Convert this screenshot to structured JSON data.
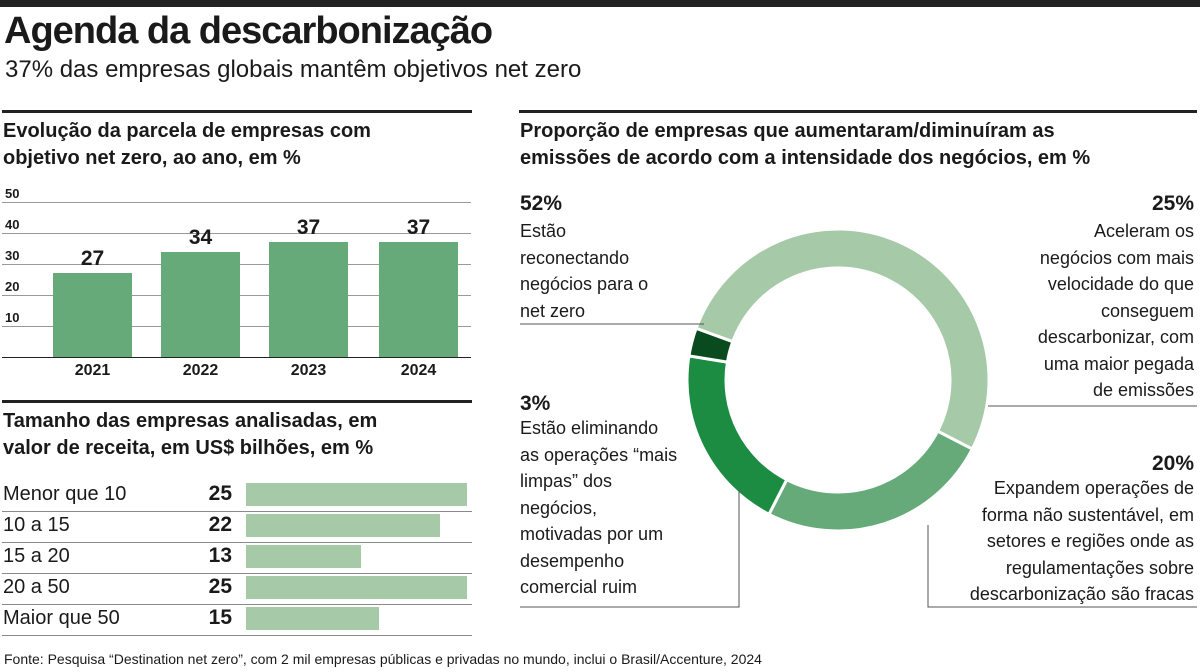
{
  "header": {
    "title": "Agenda da descarbonização",
    "subtitle": "37% das empresas globais mantêm objetivos net zero"
  },
  "left_top": {
    "title_line1": "Evolução da parcela de empresas com",
    "title_line2": "objetivo net zero, ao ano, em %"
  },
  "left_bottom": {
    "title_line1": "Tamanho das empresas analisadas, em",
    "title_line2": "valor de receita, em US$ bilhões, em %"
  },
  "right": {
    "title_line1": "Proporção de empresas que aumentaram/diminuíram as",
    "title_line2": "emissões de acordo com a intensidade dos negócios, em %"
  },
  "colors": {
    "bar": "#66aa7a",
    "hbar": "#a6c9a8",
    "donut_reconnect": "#a6c9a8",
    "donut_accelerate": "#66aa7a",
    "donut_expand": "#1d8c43",
    "donut_eliminate": "#0a4a1f"
  },
  "chart_data": [
    {
      "type": "bar",
      "categories": [
        "2021",
        "2022",
        "2023",
        "2024"
      ],
      "values": [
        27,
        34,
        37,
        37
      ],
      "value_labels": [
        "27",
        "34",
        "37",
        "37"
      ],
      "ylim": [
        0,
        50
      ],
      "yticks": [
        "50",
        "40",
        "30",
        "20",
        "10"
      ],
      "grid": true
    },
    {
      "type": "bar",
      "orientation": "horizontal",
      "categories": [
        "Menor que 10",
        "10 a 15",
        "15 a 20",
        "20 a 50",
        "Maior que 50"
      ],
      "values": [
        25,
        22,
        13,
        25,
        15
      ],
      "value_labels": [
        "25",
        "22",
        "13",
        "25",
        "15"
      ]
    },
    {
      "type": "pie",
      "donut": true,
      "slices": [
        {
          "value": 52,
          "pct_label": "52%",
          "lines": [
            "Estão",
            "reconectando",
            "negócios para o",
            "net zero"
          ]
        },
        {
          "value": 25,
          "pct_label": "25%",
          "lines": [
            "Aceleram os",
            "negócios com mais",
            "velocidade do que",
            "conseguem",
            "descarbonizar, com",
            "uma maior pegada",
            "de emissões"
          ]
        },
        {
          "value": 20,
          "pct_label": "20%",
          "lines": [
            "Expandem operações de",
            "forma não sustentável, em",
            "setores e regiões onde as",
            "regulamentações sobre",
            "descarbonização são fracas"
          ]
        },
        {
          "value": 3,
          "pct_label": "3%",
          "lines": [
            "Estão eliminando",
            "as operações “mais",
            "limpas” dos",
            "negócios,",
            "motivadas por um",
            "desempenho",
            "comercial ruim"
          ]
        }
      ]
    }
  ],
  "footer": {
    "source": "Fonte: Pesquisa “Destination net zero”, com 2 mil empresas públicas e privadas no mundo, inclui o Brasil/Accenture, 2024"
  }
}
